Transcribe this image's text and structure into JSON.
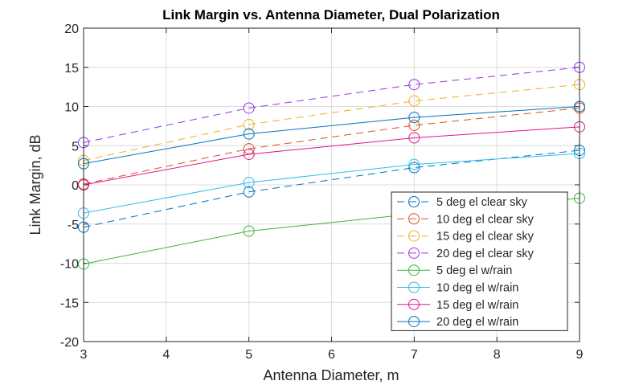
{
  "chart_data": {
    "type": "line",
    "title": "Link Margin vs. Antenna Diameter, Dual Polarization",
    "xlabel": "Antenna Diameter, m",
    "ylabel": "Link Margin, dB",
    "xlim": [
      3,
      9
    ],
    "ylim": [
      -20,
      20
    ],
    "xticks": [
      3,
      4,
      5,
      6,
      7,
      8,
      9
    ],
    "yticks": [
      -20,
      -15,
      -10,
      -5,
      0,
      5,
      10,
      15,
      20
    ],
    "grid": true,
    "legend_position": "bottom-right",
    "x": [
      3,
      5,
      7,
      9
    ],
    "series": [
      {
        "name": "5 deg el clear sky",
        "values": [
          -5.4,
          -0.9,
          2.2,
          4.4
        ],
        "color": "#0072BD",
        "dash": true
      },
      {
        "name": "10 deg el clear sky",
        "values": [
          0.1,
          4.6,
          7.6,
          9.8
        ],
        "color": "#D95319",
        "dash": true
      },
      {
        "name": "15 deg el clear sky",
        "values": [
          3.1,
          7.7,
          10.7,
          12.8
        ],
        "color": "#EDB120",
        "dash": true
      },
      {
        "name": "20 deg el clear sky",
        "values": [
          5.4,
          9.8,
          12.8,
          15.0
        ],
        "color": "#9933E6",
        "dash": true
      },
      {
        "name": "5 deg el w/rain",
        "values": [
          -10.1,
          -5.9,
          -3.7,
          -1.7
        ],
        "color": "#3CB43C",
        "dash": false
      },
      {
        "name": "10 deg el w/rain",
        "values": [
          -3.6,
          0.3,
          2.6,
          4.0
        ],
        "color": "#33BBEE",
        "dash": false
      },
      {
        "name": "15 deg el w/rain",
        "values": [
          0.0,
          3.9,
          6.0,
          7.4
        ],
        "color": "#E0148C",
        "dash": false
      },
      {
        "name": "20 deg el w/rain",
        "values": [
          2.7,
          6.5,
          8.6,
          10.0
        ],
        "color": "#0072BD",
        "dash": false
      }
    ]
  }
}
